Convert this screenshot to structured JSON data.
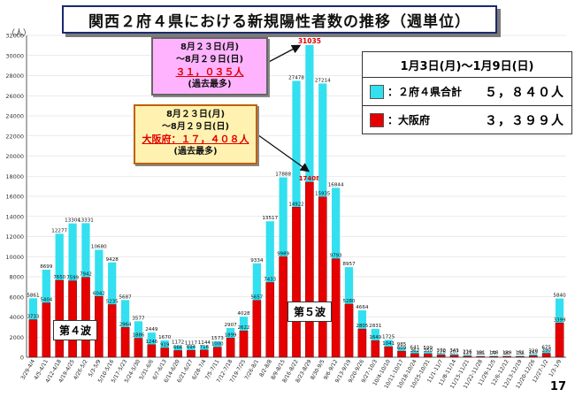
{
  "title": "関西２府４県における新規陽性者数の推移（週単位）",
  "legend": {
    "period": "1月3日(月)〜1月9日(日)",
    "total_label": "：２府４県合計",
    "total_value": "５，８４０人",
    "osaka_label": "：大阪府",
    "osaka_value": "３，３９９人"
  },
  "callout_total": {
    "line1": "8月２３日(月)",
    "line2": "〜8月２９日(日)",
    "value": "３１，０３５人",
    "note": "(過去最多)"
  },
  "callout_osaka": {
    "line1": "8月２３日(月)",
    "line2": "〜8月２９日(日)",
    "value": "大阪府：１７，４０８人",
    "note": "(過去最多)"
  },
  "wave4": "第４波",
  "wave5": "第５波",
  "page": "17",
  "colors": {
    "total": "#33e0f0",
    "osaka": "#e60000"
  },
  "chart_data": {
    "type": "bar",
    "ylabel": "（人）",
    "ylim": [
      0,
      32000
    ],
    "yticks": [
      0,
      2000,
      4000,
      6000,
      8000,
      10000,
      12000,
      14000,
      16000,
      18000,
      20000,
      22000,
      24000,
      26000,
      28000,
      30000,
      32000
    ],
    "categories": [
      "3/29-4/4",
      "4/5-4/11",
      "4/12-4/18",
      "4/19-4/25",
      "4/26-5/2",
      "5/3-5/9",
      "5/10-5/16",
      "5/17-5/23",
      "5/24-5/30",
      "5/31-6/6",
      "6/7-6/13",
      "6/14-6/20",
      "6/21-6/27",
      "6/28-7/4",
      "7/5-7/11",
      "7/12-7/18",
      "7/19-7/25",
      "7/26-8/1",
      "8/2-8/8",
      "8/9-8/15",
      "8/16-8/22",
      "8/23-8/29",
      "8/30-9/5",
      "9/6-9/12",
      "9/13-9/19",
      "9/20-9/26",
      "9/27-10/3",
      "10/4-10/10",
      "10/11-10/17",
      "10/18-10/24",
      "10/25-10/31",
      "11/1-11/7",
      "11/8-11/14",
      "11/15-11/21",
      "11/22-11/28",
      "11/29-12/5",
      "12/6-12/12",
      "12/13-12/19",
      "12/20-12/26",
      "12/27-1/2",
      "1/3-1/9"
    ],
    "series": [
      {
        "name": "２府４県合計",
        "values": [
          5861,
          8699,
          12277,
          13304,
          13331,
          10680,
          9428,
          5687,
          3577,
          2449,
          1670,
          1172,
          1117,
          1144,
          1573,
          2907,
          4028,
          9334,
          13517,
          17888,
          27478,
          31035,
          27214,
          16844,
          8957,
          4664,
          2831,
          1725,
          985,
          641,
          599,
          370,
          341,
          216,
          131,
          148,
          139,
          151,
          320,
          675,
          5840
        ],
        "labels": [
          "5861",
          "8699",
          "12277",
          "13304",
          "13331",
          "10680",
          "9428",
          "5687",
          "3577",
          "2449",
          "1670",
          "1172",
          "1117",
          "1144",
          "1573",
          "2907",
          "4028",
          "9334",
          "13517",
          "17888",
          "27478",
          "31035",
          "27214",
          "16844",
          "8957",
          "4664",
          "2831",
          "1725",
          "985",
          "641",
          "599",
          "370",
          "341",
          "216",
          "131",
          "148",
          "139",
          "151",
          "320",
          "675",
          "5840"
        ]
      },
      {
        "name": "大阪府",
        "values": [
          3733,
          5404,
          7650,
          7599,
          7942,
          6042,
          5235,
          2964,
          1886,
          1246,
          919,
          666,
          694,
          716,
          1000,
          1899,
          2622,
          5657,
          7433,
          9989,
          14922,
          17408,
          15935,
          9793,
          5280,
          2805,
          1649,
          1041,
          609,
          362,
          350,
          226,
          207,
          121,
          86,
          77,
          90,
          79,
          165,
          390,
          3399
        ],
        "labels": [
          "3733",
          "5404",
          "7650",
          "7599",
          "7942",
          "6042",
          "5235",
          "2964",
          "1886",
          "1246",
          "919",
          "666",
          "694",
          "716",
          "1000",
          "1899",
          "2622",
          "5657",
          "7433",
          "9989",
          "14922",
          "17408",
          "15935",
          "9793",
          "5280",
          "2805",
          "1649",
          "1041",
          "609",
          "362",
          "350",
          "226",
          "207",
          "121",
          "86",
          "77",
          "90",
          "79",
          "165",
          "390",
          "3399"
        ]
      }
    ]
  }
}
